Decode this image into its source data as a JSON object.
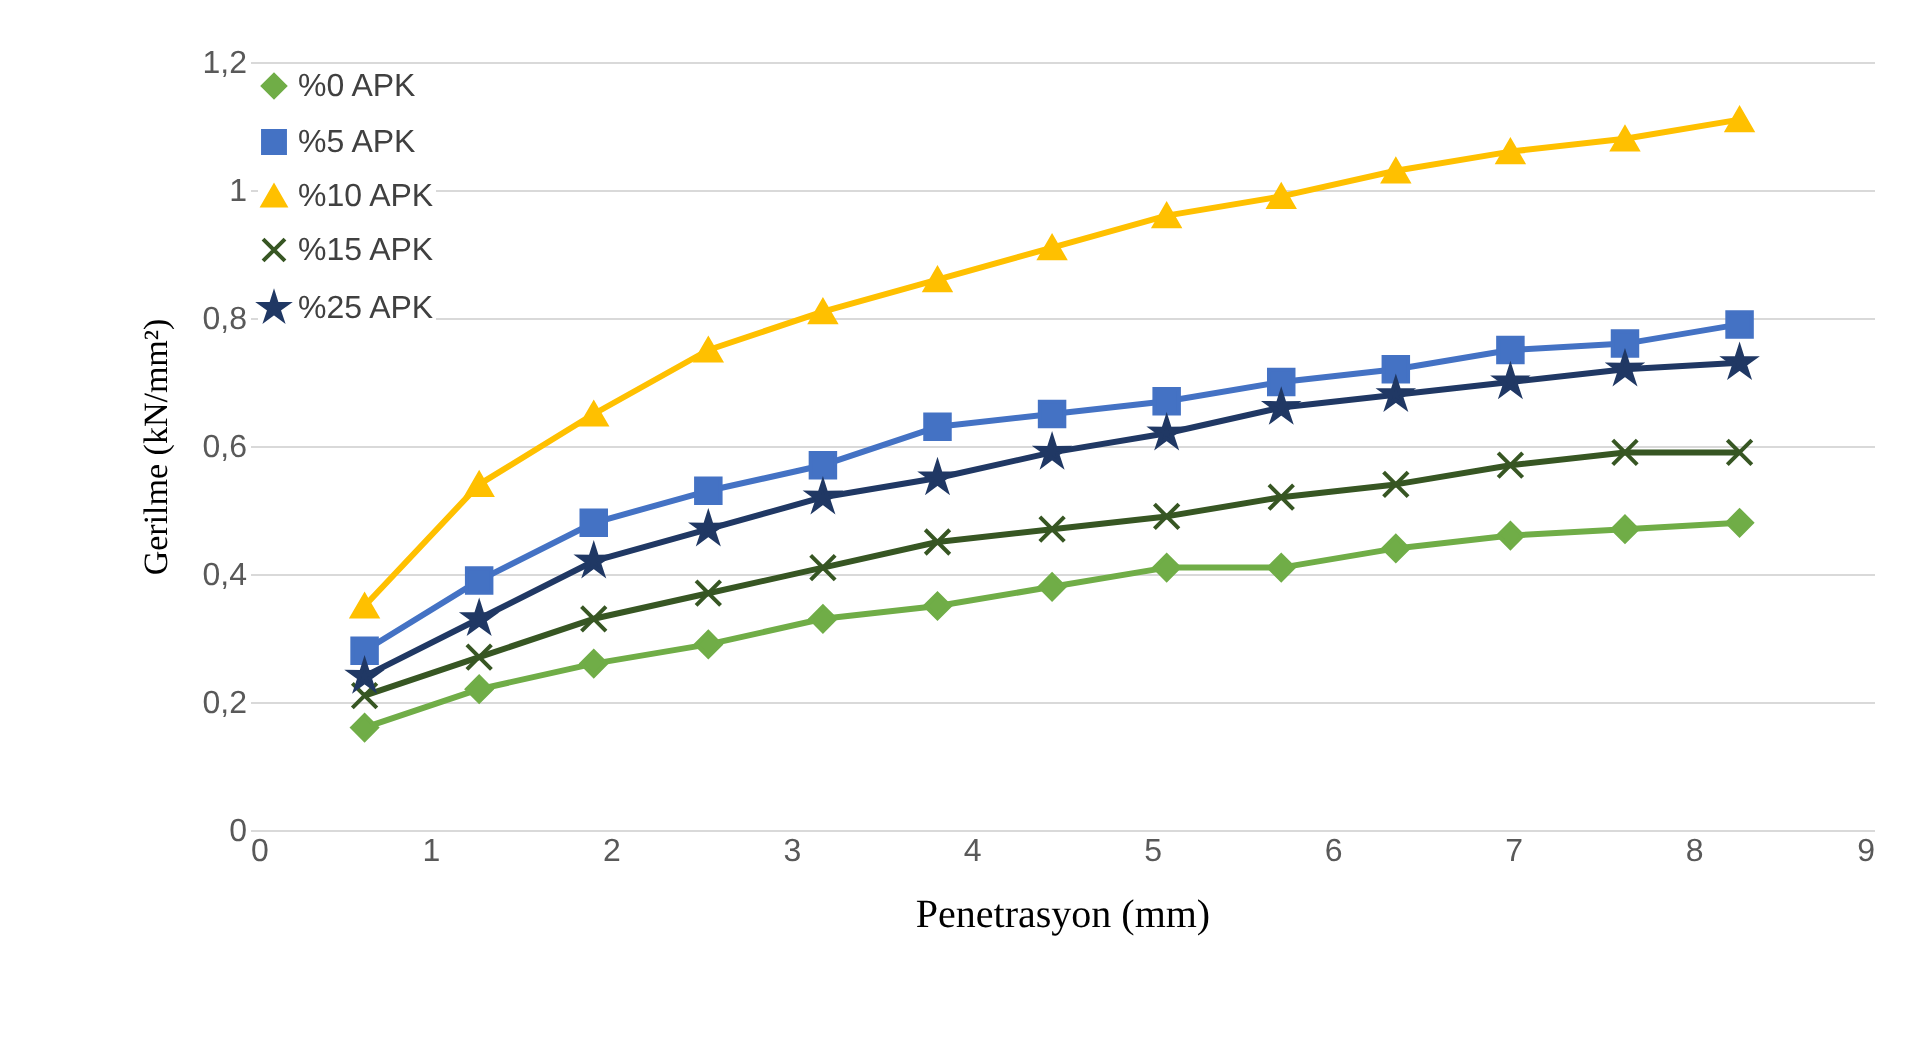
{
  "chart_data": {
    "type": "line",
    "xlabel": "Penetrasyon (mm)",
    "ylabel": "Gerilme (kN/mm²)",
    "x": [
      0.635,
      1.27,
      1.905,
      2.54,
      3.175,
      3.81,
      4.445,
      5.08,
      5.715,
      6.35,
      6.985,
      7.62,
      8.255
    ],
    "series": [
      {
        "name": "%0 APK",
        "color": "#70ad47",
        "marker": "diamond",
        "values": [
          0.16,
          0.22,
          0.26,
          0.29,
          0.33,
          0.35,
          0.38,
          0.41,
          0.41,
          0.44,
          0.46,
          0.47,
          0.48
        ]
      },
      {
        "name": "%5 APK",
        "color": "#4472c4",
        "marker": "square",
        "values": [
          0.28,
          0.39,
          0.48,
          0.53,
          0.57,
          0.63,
          0.65,
          0.67,
          0.7,
          0.72,
          0.75,
          0.76,
          0.79
        ]
      },
      {
        "name": "%10 APK",
        "color": "#ffc000",
        "marker": "triangle",
        "values": [
          0.35,
          0.54,
          0.65,
          0.75,
          0.81,
          0.86,
          0.91,
          0.96,
          0.99,
          1.03,
          1.06,
          1.08,
          1.11
        ]
      },
      {
        "name": "%15 APK",
        "color": "#375623",
        "marker": "cross",
        "values": [
          0.21,
          0.27,
          0.33,
          0.37,
          0.41,
          0.45,
          0.47,
          0.49,
          0.52,
          0.54,
          0.57,
          0.59,
          0.59
        ]
      },
      {
        "name": "%25 APK",
        "color": "#203864",
        "marker": "star",
        "values": [
          0.24,
          0.33,
          0.42,
          0.47,
          0.52,
          0.55,
          0.59,
          0.62,
          0.66,
          0.68,
          0.7,
          0.72,
          0.73
        ]
      }
    ],
    "xlim": [
      0,
      9
    ],
    "xticks": [
      0,
      1,
      2,
      3,
      4,
      5,
      6,
      7,
      8,
      9
    ],
    "ylim": [
      0,
      1.2
    ],
    "yticks": [
      {
        "value": 0,
        "label": "0"
      },
      {
        "value": 0.2,
        "label": "0,2"
      },
      {
        "value": 0.4,
        "label": "0,4"
      },
      {
        "value": 0.6,
        "label": "0,6"
      },
      {
        "value": 0.8,
        "label": "0,8"
      },
      {
        "value": 1,
        "label": "1"
      },
      {
        "value": 1.2,
        "label": "1,2"
      }
    ],
    "grid": "y",
    "legend": "top left",
    "line_style": "solid"
  }
}
